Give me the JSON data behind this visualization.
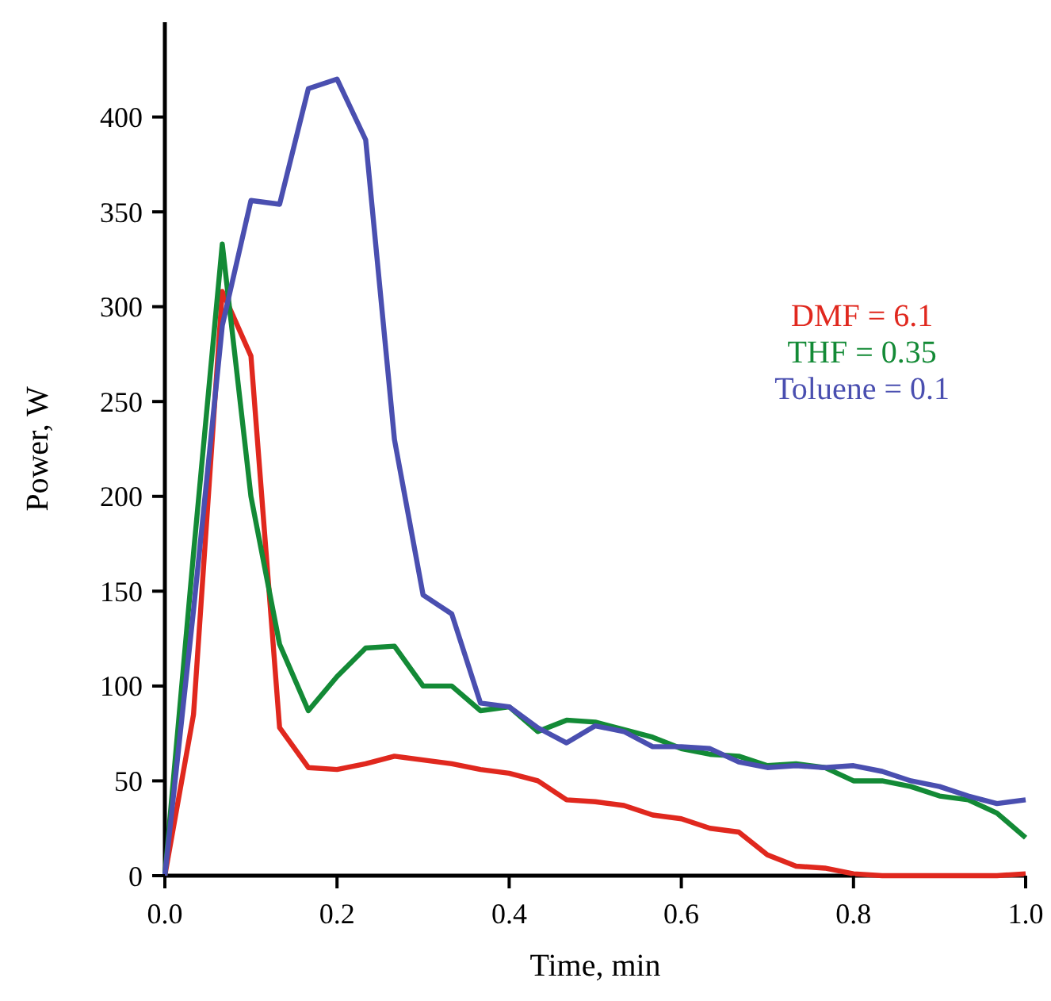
{
  "chart_data": {
    "type": "line",
    "xlabel": "Time, min",
    "ylabel": "Power, W",
    "x": [
      0,
      0.0333,
      0.0667,
      0.1,
      0.1333,
      0.1667,
      0.2,
      0.2333,
      0.2667,
      0.3,
      0.3333,
      0.3667,
      0.4,
      0.4333,
      0.4667,
      0.5,
      0.5333,
      0.5667,
      0.6,
      0.6333,
      0.6667,
      0.7,
      0.7333,
      0.7667,
      0.8,
      0.8333,
      0.8667,
      0.9,
      0.9333,
      0.9667,
      1.0
    ],
    "series": [
      {
        "name": "DMF = 6.1",
        "color": "#e0281e",
        "values": [
          0,
          85,
          308,
          274,
          78,
          57,
          56,
          59,
          63,
          61,
          59,
          56,
          54,
          50,
          40,
          39,
          37,
          32,
          30,
          25,
          23,
          11,
          5,
          4,
          1,
          0,
          0,
          0,
          0,
          0,
          1
        ]
      },
      {
        "name": "THF = 0.35",
        "color": "#138a36",
        "values": [
          0,
          170,
          333,
          200,
          122,
          87,
          105,
          120,
          121,
          100,
          100,
          87,
          89,
          76,
          82,
          81,
          77,
          73,
          67,
          64,
          63,
          58,
          59,
          57,
          50,
          50,
          47,
          42,
          40,
          33,
          20
        ]
      },
      {
        "name": "Toluene = 0.1",
        "color": "#4a4fb0",
        "values": [
          0,
          140,
          290,
          356,
          354,
          415,
          420,
          388,
          230,
          148,
          138,
          91,
          89,
          78,
          70,
          79,
          76,
          68,
          68,
          67,
          60,
          57,
          58,
          57,
          58,
          55,
          50,
          47,
          42,
          38,
          40
        ]
      }
    ],
    "xlim": [
      0,
      1
    ],
    "ylim": [
      0,
      450
    ],
    "xticks": [
      {
        "value": 0,
        "label": "0.0"
      },
      {
        "value": 0.2,
        "label": "0.2"
      },
      {
        "value": 0.4,
        "label": "0.4"
      },
      {
        "value": 0.6,
        "label": "0.6"
      },
      {
        "value": 0.8,
        "label": "0.8"
      },
      {
        "value": 1,
        "label": "1.0"
      }
    ],
    "yticks": [
      0,
      50,
      100,
      150,
      200,
      250,
      300,
      350,
      400
    ],
    "legend": "right",
    "grid": false,
    "marker": "none",
    "line_style": "solid"
  }
}
